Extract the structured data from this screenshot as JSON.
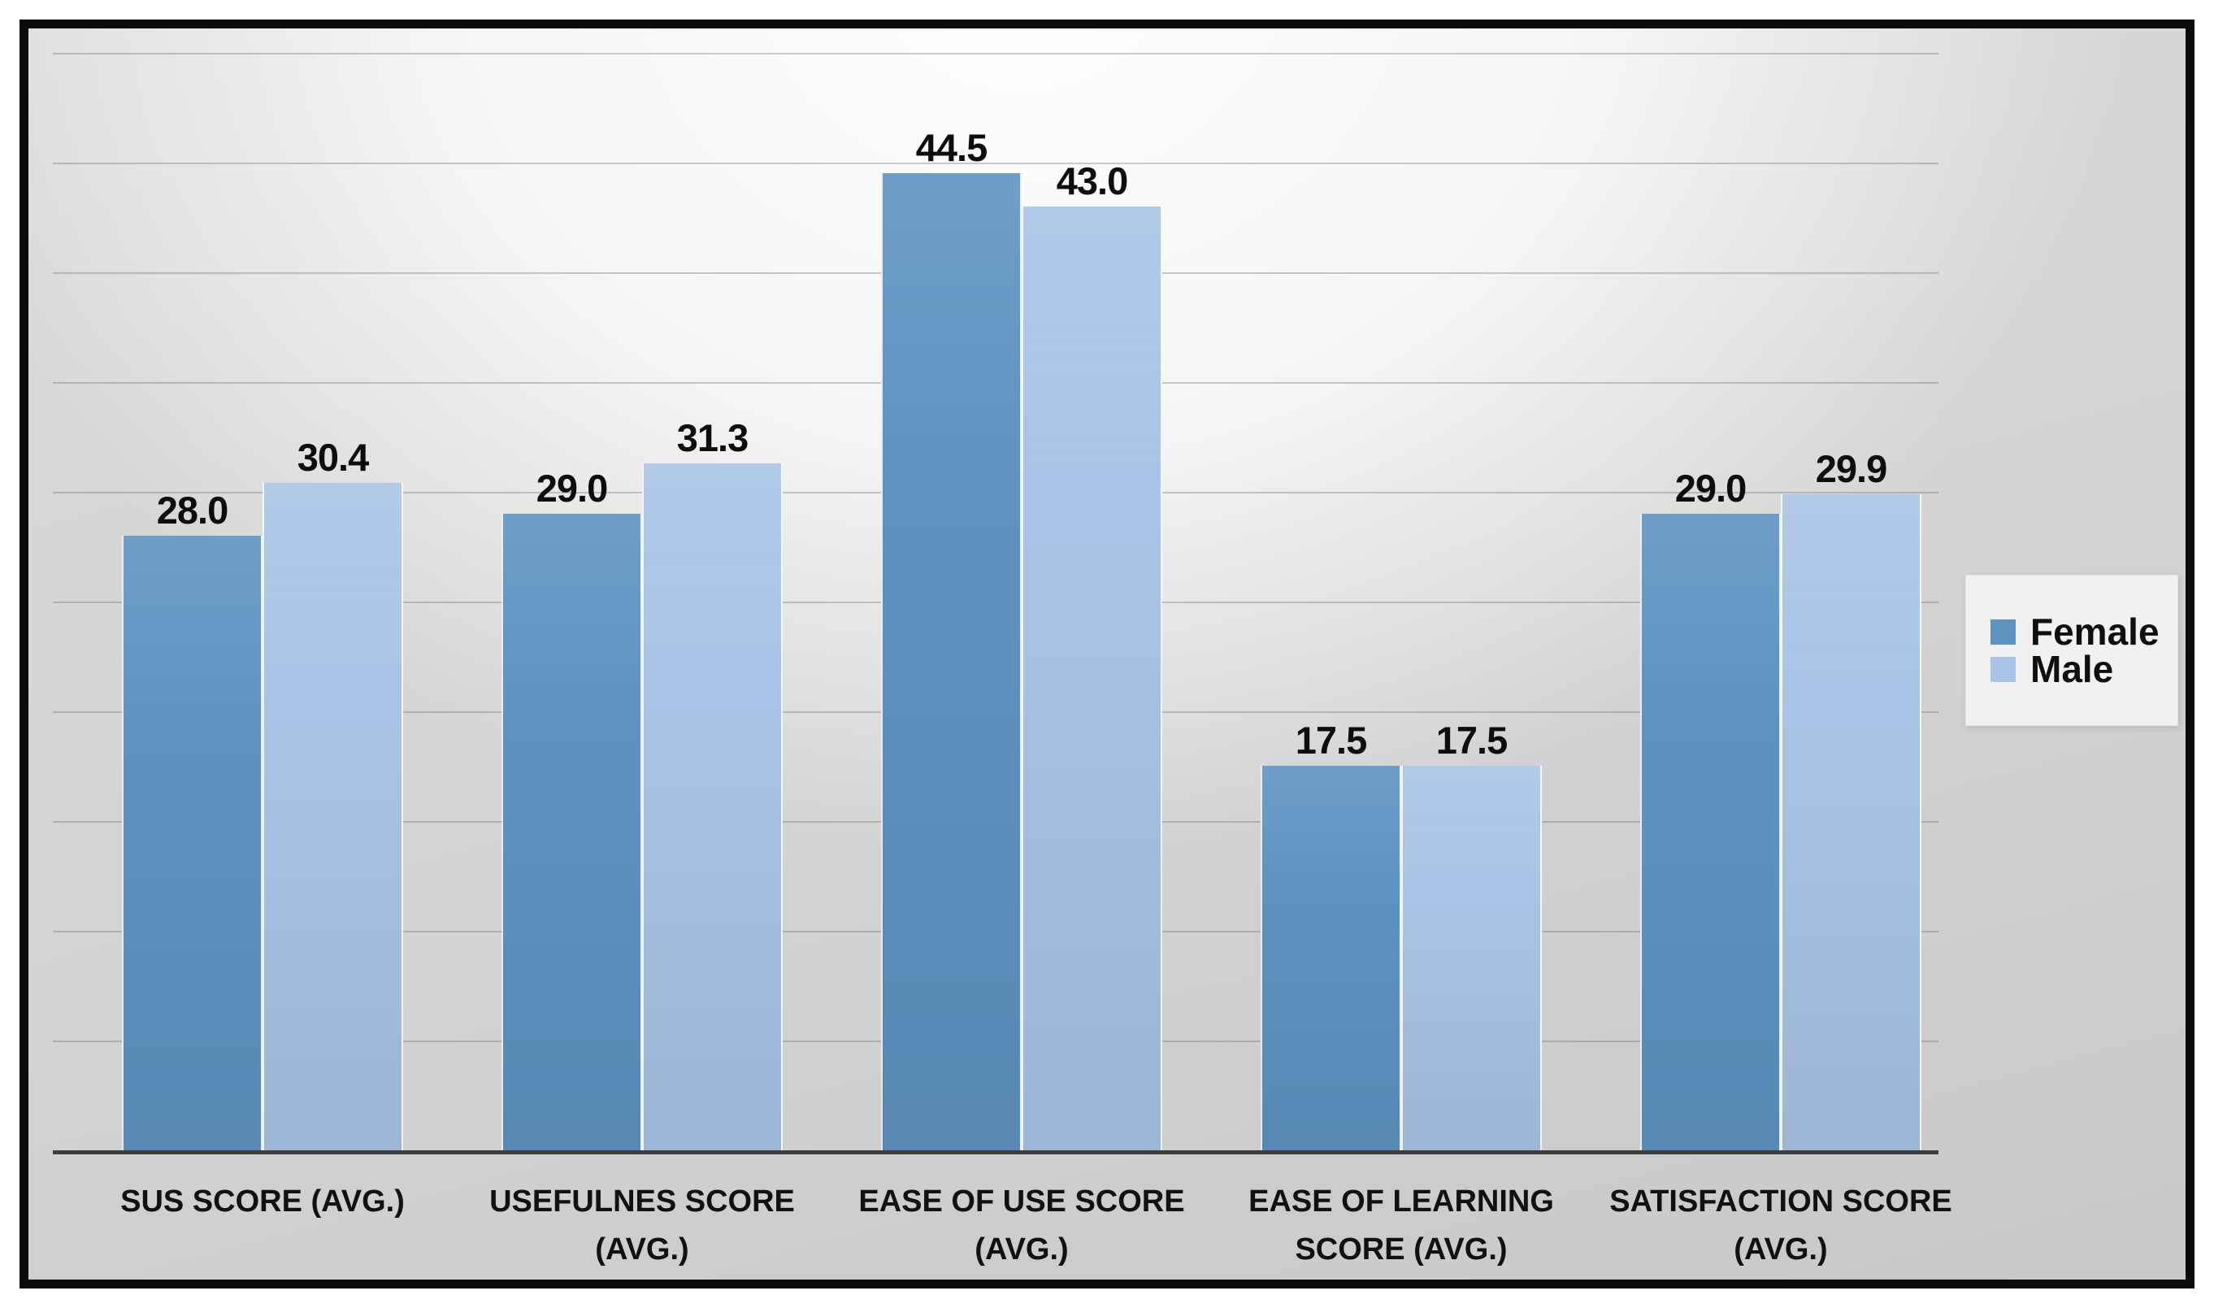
{
  "chart_data": {
    "type": "bar",
    "categories": [
      "SUS SCORE (AVG.)",
      "USEFULNES SCORE (AVG.)",
      "EASE OF USE SCORE (AVG.)",
      "EASE OF LEARNING SCORE (AVG.)",
      "SATISFACTION SCORE (AVG.)"
    ],
    "series": [
      {
        "name": "Female",
        "color": "#5E93C2",
        "values": [
          28.0,
          29.0,
          44.5,
          17.5,
          29.0
        ],
        "labels": [
          "28.0",
          "29.0",
          "44.5",
          "17.5",
          "29.0"
        ]
      },
      {
        "name": "Male",
        "color": "#A9C4E6",
        "values": [
          30.4,
          31.3,
          43.0,
          17.5,
          29.9
        ],
        "labels": [
          "30.4",
          "31.3",
          "43.0",
          "17.5",
          "29.9"
        ]
      }
    ],
    "title": "",
    "xlabel": "",
    "ylabel": "",
    "value_axis": {
      "min": 0,
      "max": 51,
      "gridline_step": 5,
      "tick_labels_visible": false,
      "grid": true
    },
    "data_labels": {
      "visible": true,
      "format": "one-decimal"
    },
    "legend": {
      "position": "right",
      "entries": [
        "Female",
        "Male"
      ]
    }
  },
  "colors": {
    "female_bar": "#5E93C2",
    "male_bar": "#A9C4E6",
    "gridline": "rgba(110,110,110,0.35)",
    "axis_line": "#3d3d3d",
    "data_label_text": "#0d0d0d",
    "category_label_text": "#111111",
    "legend_background": "#f1f1f1",
    "frame_border": "#0b0b0b"
  }
}
